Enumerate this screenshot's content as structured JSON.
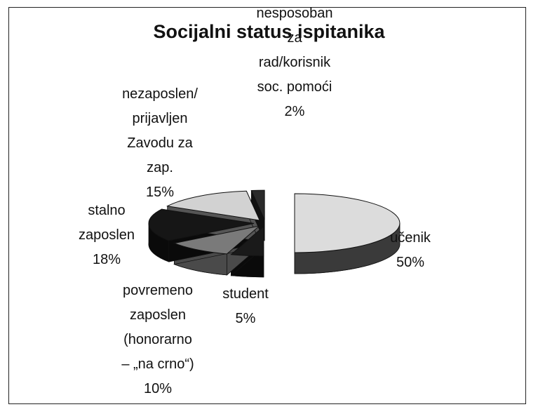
{
  "chart_data": {
    "type": "pie3d",
    "title": "Socijalni status ispitanika",
    "categories": [
      "učenik",
      "student",
      "povremeno\nzaposlen\n(honorarno\n– „na crno“)",
      "stalno\nzaposlen",
      "nezaposlen/\nprijavljen\nZavodu za\nzap.",
      "nesposoban\nza\nrad/korisnik\nsoc. pomoći"
    ],
    "values": [
      50,
      5,
      10,
      18,
      15,
      2
    ],
    "value_labels": [
      "50%",
      "5%",
      "10%",
      "18%",
      "15%",
      "2%"
    ],
    "colors": [
      "#dcdcdc",
      "#1a1a1a",
      "#7a7a7a",
      "#161616",
      "#d2d2d2",
      "#2a2a2a"
    ],
    "side_colors": [
      "#3a3a3a",
      "#0a0a0a",
      "#4a4a4a",
      "#0a0a0a",
      "#555555",
      "#111111"
    ]
  }
}
